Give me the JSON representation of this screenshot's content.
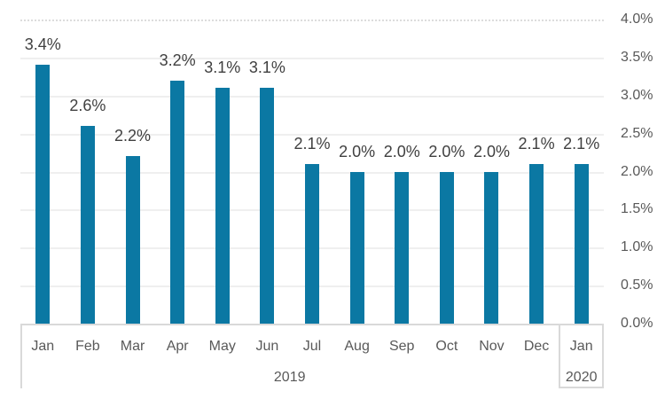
{
  "chart_data": {
    "type": "bar",
    "title": "",
    "xlabel": "",
    "ylabel": "",
    "categories": [
      "Jan",
      "Feb",
      "Mar",
      "Apr",
      "May",
      "Jun",
      "Jul",
      "Aug",
      "Sep",
      "Oct",
      "Nov",
      "Dec",
      "Jan"
    ],
    "year_groups": [
      {
        "label": "2019",
        "span": 12
      },
      {
        "label": "2020",
        "span": 1
      }
    ],
    "values": [
      3.4,
      2.6,
      2.2,
      3.2,
      3.1,
      3.1,
      2.1,
      2.0,
      2.0,
      2.0,
      2.0,
      2.1,
      2.1
    ],
    "data_labels": [
      "3.4%",
      "2.6%",
      "2.2%",
      "3.2%",
      "3.1%",
      "3.1%",
      "2.1%",
      "2.0%",
      "2.0%",
      "2.0%",
      "2.0%",
      "2.1%",
      "2.1%"
    ],
    "y_axis": {
      "side": "right",
      "min": 0,
      "max": 4,
      "step": 0.5,
      "ticks": [
        "0.0%",
        "0.5%",
        "1.0%",
        "1.5%",
        "2.0%",
        "2.5%",
        "3.0%",
        "3.5%",
        "4.0%"
      ]
    },
    "grid": true,
    "legend": "none",
    "colors": {
      "bar": "#0b78a3",
      "gridline": "#efefef",
      "top_gridline": "#dcdcdc",
      "axis_border": "#d9d9d9",
      "data_label": "#404040",
      "axis_label": "#595959",
      "background": "#ffffff"
    }
  }
}
